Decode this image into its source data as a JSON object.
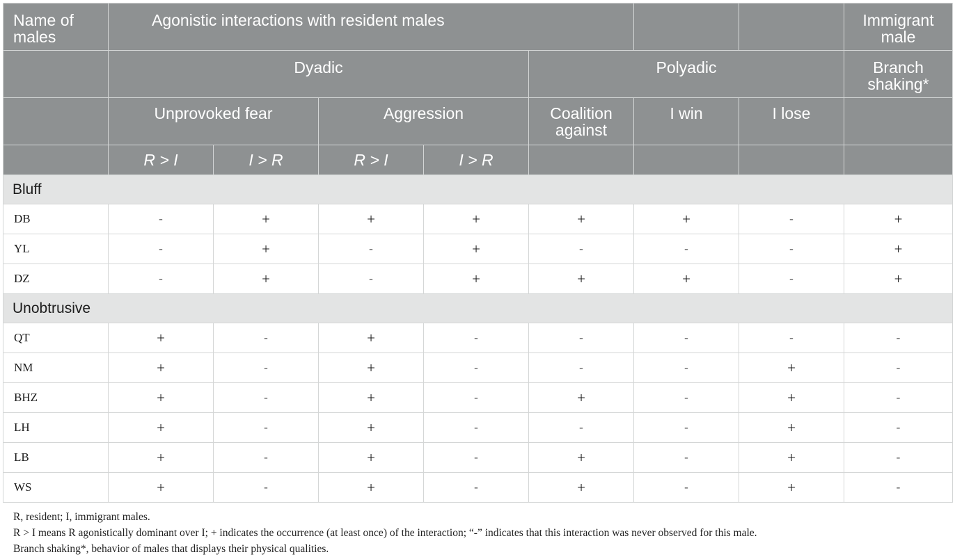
{
  "header": {
    "name_of_males": "Name of males",
    "agonistic": "Agonistic interactions with resident males",
    "immigrant_male": "Immigrant male",
    "dyadic": "Dyadic",
    "polyadic": "Polyadic",
    "branch_shaking": "Branch shaking*",
    "unprovoked_fear": "Unprovoked fear",
    "aggression": "Aggression",
    "coalition_against": "Coalition against",
    "i_win": "I win",
    "i_lose": "I lose",
    "r_gt_i_1": "R > I",
    "i_gt_r_1": "I > R",
    "r_gt_i_2": "R > I",
    "i_gt_r_2": "I > R"
  },
  "groups": [
    {
      "label": "Bluff",
      "rows": [
        {
          "name": "DB",
          "values": [
            "-",
            "+",
            "+",
            "+",
            "+",
            "+",
            "-",
            "+"
          ]
        },
        {
          "name": "YL",
          "values": [
            "-",
            "+",
            "-",
            "+",
            "-",
            "-",
            "-",
            "+"
          ]
        },
        {
          "name": "DZ",
          "values": [
            "-",
            "+",
            "-",
            "+",
            "+",
            "+",
            "-",
            "+"
          ]
        }
      ]
    },
    {
      "label": "Unobtrusive",
      "rows": [
        {
          "name": "QT",
          "values": [
            "+",
            "-",
            "+",
            "-",
            "-",
            "-",
            "-",
            "-"
          ]
        },
        {
          "name": "NM",
          "values": [
            "+",
            "-",
            "+",
            "-",
            "-",
            "-",
            "+",
            "-"
          ]
        },
        {
          "name": "BHZ",
          "values": [
            "+",
            "-",
            "+",
            "-",
            "+",
            "-",
            "+",
            "-"
          ]
        },
        {
          "name": "LH",
          "values": [
            "+",
            "-",
            "+",
            "-",
            "-",
            "-",
            "+",
            "-"
          ]
        },
        {
          "name": "LB",
          "values": [
            "+",
            "-",
            "+",
            "-",
            "+",
            "-",
            "+",
            "-"
          ]
        },
        {
          "name": "WS",
          "values": [
            "+",
            "-",
            "+",
            "-",
            "+",
            "-",
            "+",
            "-"
          ]
        }
      ]
    }
  ],
  "notes": [
    "R, resident; I, immigrant males.",
    "R > I means R agonistically dominant over I; + indicates the occurrence (at least once) of the interaction; “-” indicates that this interaction was never observed for this male.",
    "Branch shaking*, behavior of males that displays their physical qualities."
  ]
}
